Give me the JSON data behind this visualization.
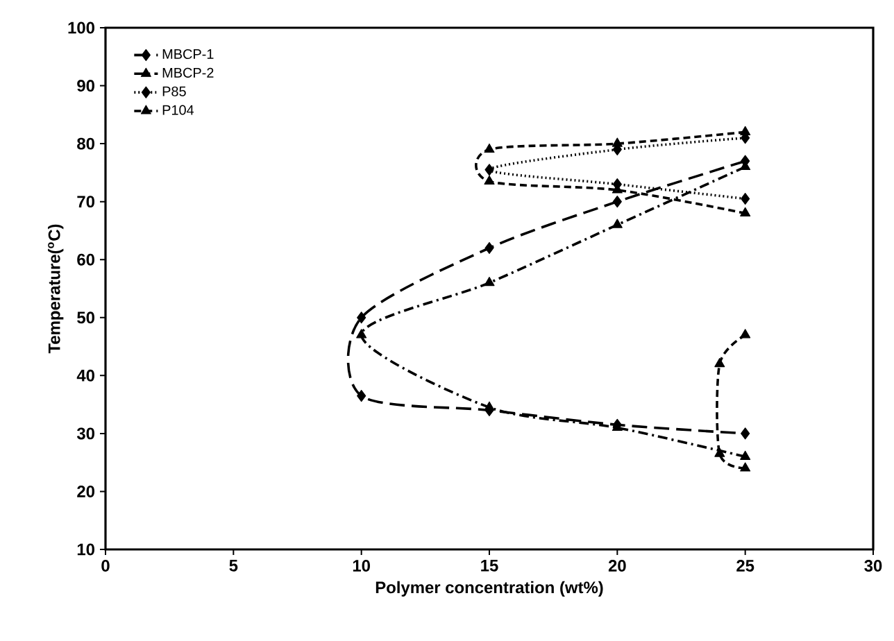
{
  "chart_data": {
    "type": "line",
    "xlabel": "Polymer concentration (wt%)",
    "ylabel": "Temperature($^{o}$C)",
    "xlim": [
      0,
      30
    ],
    "xticks": [
      0,
      5,
      10,
      15,
      20,
      25,
      30
    ],
    "ylim": [
      10,
      100
    ],
    "yticks": [
      10,
      20,
      30,
      40,
      50,
      60,
      70,
      80,
      90,
      100
    ],
    "grid": false,
    "legend": "top left",
    "series": [
      {
        "name": "MBCP-1",
        "color": "#000000",
        "marker": "diamond",
        "line_style": "longdash",
        "x": [
          25,
          20,
          15,
          10,
          10,
          15,
          20,
          25
        ],
        "values": [
          77,
          70,
          62,
          50,
          36.5,
          34,
          31.5,
          30
        ]
      },
      {
        "name": "MBCP-2",
        "color": "#000000",
        "marker": "triangle",
        "line_style": "dashdot",
        "x": [
          25,
          20,
          15,
          10,
          15,
          20,
          25
        ],
        "values": [
          76,
          66,
          56,
          47,
          34.5,
          31,
          26
        ]
      },
      {
        "name": "P85",
        "color": "#000000",
        "marker": "diamond",
        "line_style": "dotted",
        "x": [
          25,
          20,
          15,
          20,
          25
        ],
        "values": [
          81,
          79,
          75.5,
          73,
          70.5
        ]
      },
      {
        "name": "P104",
        "color": "#000000",
        "marker": "triangle",
        "line_style": "dashed",
        "x": [
          25,
          20,
          15,
          15,
          20,
          25
        ],
        "values": [
          82,
          80,
          79,
          73.5,
          72,
          68
        ]
      },
      {
        "color": "#000000",
        "marker": "triangle",
        "line_style": "dashed",
        "x": [
          25,
          24,
          24,
          25
        ],
        "values": [
          24,
          26.5,
          42,
          47
        ]
      }
    ]
  }
}
